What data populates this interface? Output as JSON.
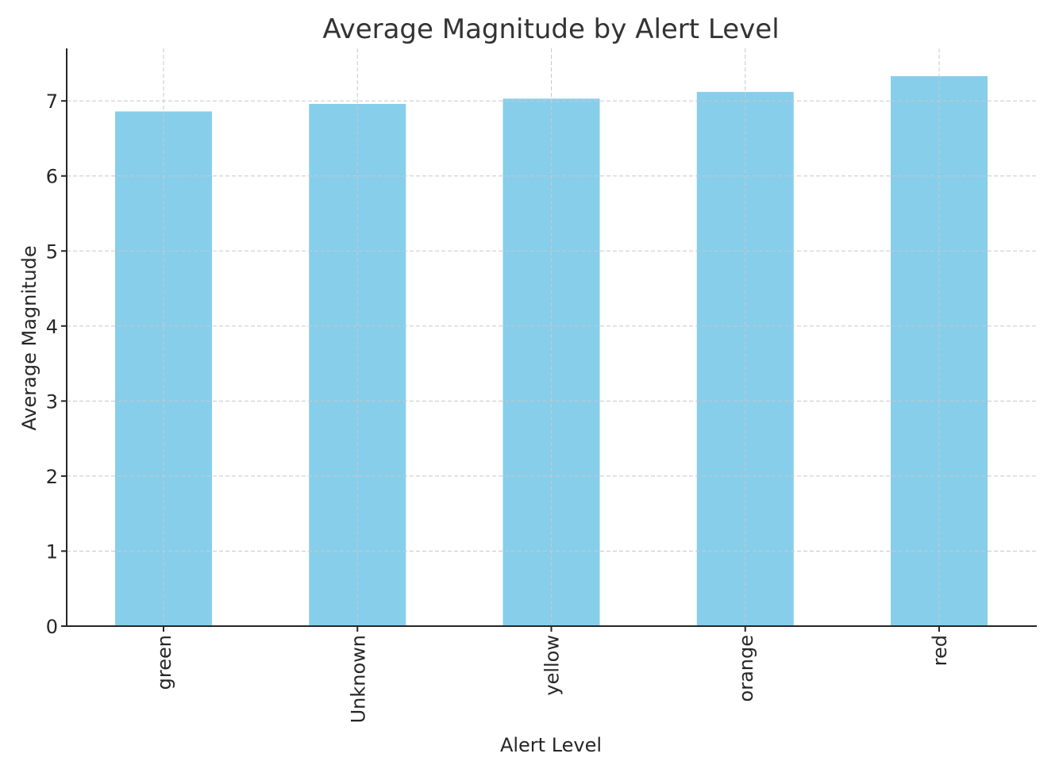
{
  "chart_data": {
    "type": "bar",
    "title": "Average Magnitude by Alert Level",
    "xlabel": "Alert Level",
    "ylabel": "Average Magnitude",
    "categories": [
      "green",
      "Unknown",
      "yellow",
      "orange",
      "red"
    ],
    "values": [
      6.86,
      6.96,
      7.03,
      7.12,
      7.33
    ],
    "ylim": [
      0,
      7.7
    ],
    "yticks": [
      0,
      1,
      2,
      3,
      4,
      5,
      6,
      7
    ],
    "grid": true,
    "bar_color": "#87ceeb",
    "legend": "none"
  }
}
